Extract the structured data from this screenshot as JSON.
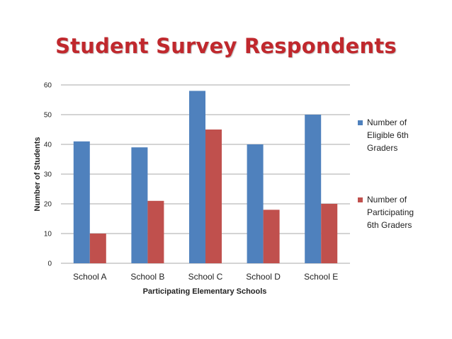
{
  "chart_data": {
    "type": "bar",
    "title": "Student Survey Respondents",
    "xlabel": "Participating Elementary Schools",
    "ylabel": "Number  of  Students",
    "categories": [
      "School A",
      "School B",
      "School C",
      "School D",
      "School E"
    ],
    "ylim": [
      0,
      60
    ],
    "yticks": [
      "0",
      "10",
      "20",
      "30",
      "40",
      "50",
      "60"
    ],
    "grid": true,
    "legend_position": "right",
    "series": [
      {
        "name": "Number of Eligible 6th Graders",
        "legend_lines": [
          "Number of",
          "Eligible 6th",
          "Graders"
        ],
        "color": "#4f81bd",
        "values": [
          41,
          39,
          58,
          40,
          50
        ]
      },
      {
        "name": "Number of Participating 6th Graders",
        "legend_lines": [
          "Number of",
          "Participating",
          "6th Graders"
        ],
        "color": "#c0504d",
        "values": [
          10,
          21,
          45,
          18,
          20
        ]
      }
    ]
  },
  "colors": {
    "title": "#c0282d",
    "grid": "#8c8c8c"
  }
}
